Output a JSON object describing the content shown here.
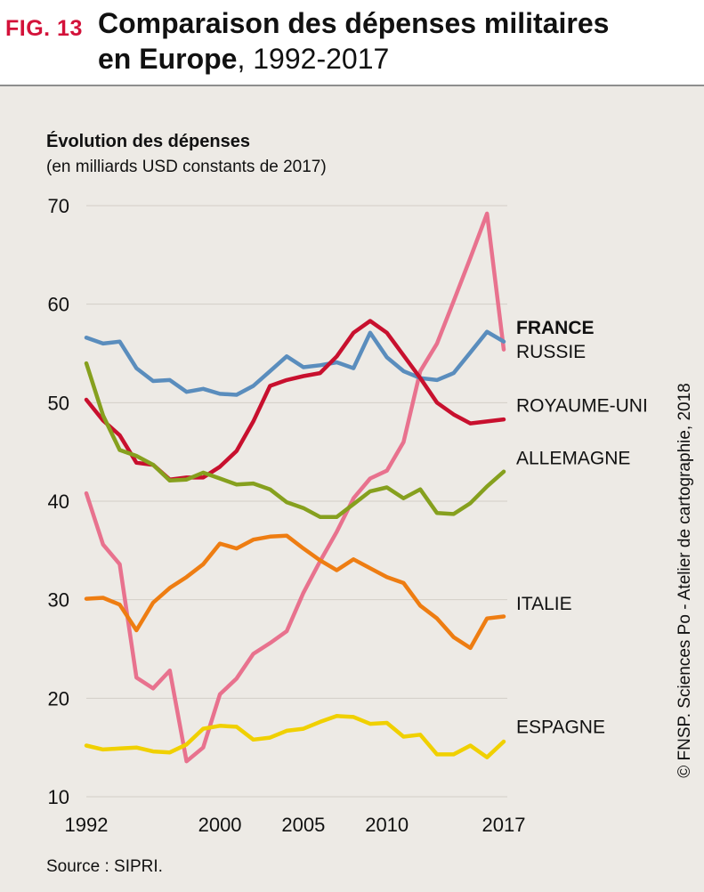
{
  "header": {
    "fig_label": "FIG. 13",
    "title_line1": "Comparaison des dépenses militaires",
    "title_line2_bold": "en Europe",
    "title_line2_rest": ", 1992-2017"
  },
  "footer": {
    "source": "Source : SIPRI.",
    "credit": "© FNSP. Sciences Po - Atelier de cartographie, 2018"
  },
  "chart_data": {
    "type": "line",
    "title": "Comparaison des dépenses militaires en Europe, 1992-2017",
    "ylabel_line1": "Évolution des dépenses",
    "ylabel_line2": "(en milliards USD constants de 2017)",
    "xlabel": "",
    "ylim": [
      10,
      70
    ],
    "xlim": [
      1992,
      2017
    ],
    "yticks": [
      10,
      20,
      30,
      40,
      50,
      60,
      70
    ],
    "xticks": [
      1992,
      2000,
      2005,
      2010,
      2017
    ],
    "grid": true,
    "x": [
      1992,
      1993,
      1994,
      1995,
      1996,
      1997,
      1998,
      1999,
      2000,
      2001,
      2002,
      2003,
      2004,
      2005,
      2006,
      2007,
      2008,
      2009,
      2010,
      2011,
      2012,
      2013,
      2014,
      2015,
      2016,
      2017
    ],
    "series": [
      {
        "name": "RUSSIE",
        "color": "#e8728e",
        "label_bold": false,
        "values": [
          40.8,
          35.6,
          33.6,
          22.1,
          21.0,
          22.8,
          13.6,
          15.0,
          20.4,
          22.0,
          24.5,
          25.6,
          26.8,
          30.7,
          33.9,
          36.9,
          40.3,
          42.3,
          43.1,
          46.0,
          53.2,
          56.0,
          60.3,
          64.7,
          69.2,
          55.4
        ]
      },
      {
        "name": "FRANCE",
        "color": "#5a8dbd",
        "label_bold": true,
        "values": [
          56.6,
          56.0,
          56.2,
          53.5,
          52.2,
          52.3,
          51.1,
          51.4,
          50.9,
          50.8,
          51.7,
          53.2,
          54.7,
          53.6,
          53.8,
          54.1,
          53.5,
          57.1,
          54.6,
          53.2,
          52.5,
          52.3,
          53.0,
          55.1,
          57.2,
          56.2
        ]
      },
      {
        "name": "ROYAUME-UNI",
        "color": "#c8102e",
        "label_bold": false,
        "values": [
          50.3,
          48.2,
          46.7,
          43.9,
          43.7,
          42.2,
          42.4,
          42.4,
          43.5,
          45.1,
          48.1,
          51.7,
          52.3,
          52.7,
          53.0,
          54.7,
          57.1,
          58.3,
          57.1,
          54.8,
          52.5,
          50.0,
          48.8,
          47.9,
          48.1,
          48.3
        ]
      },
      {
        "name": "ALLEMAGNE",
        "color": "#86a01e",
        "label_bold": false,
        "values": [
          54.0,
          48.7,
          45.2,
          44.6,
          43.7,
          42.1,
          42.2,
          42.9,
          42.3,
          41.7,
          41.8,
          41.2,
          39.9,
          39.3,
          38.4,
          38.4,
          39.7,
          41.0,
          41.4,
          40.3,
          41.2,
          38.8,
          38.7,
          39.8,
          41.5,
          43.0
        ]
      },
      {
        "name": "ITALIE",
        "color": "#ee7d12",
        "label_bold": false,
        "values": [
          30.1,
          30.2,
          29.5,
          26.9,
          29.7,
          31.2,
          32.3,
          33.6,
          35.7,
          35.2,
          36.1,
          36.4,
          36.5,
          35.2,
          34.0,
          33.0,
          34.1,
          33.2,
          32.3,
          31.7,
          29.4,
          28.1,
          26.2,
          25.1,
          28.1,
          28.3
        ]
      },
      {
        "name": "ESPAGNE",
        "color": "#f0d000",
        "label_bold": false,
        "values": [
          15.2,
          14.8,
          14.9,
          15.0,
          14.6,
          14.5,
          15.3,
          16.9,
          17.2,
          17.1,
          15.8,
          16.0,
          16.7,
          16.9,
          17.6,
          18.2,
          18.1,
          17.4,
          17.5,
          16.1,
          16.3,
          14.3,
          14.3,
          15.2,
          14.0,
          15.6
        ]
      }
    ],
    "series_label_values": {
      "FRANCE": 57.6,
      "RUSSIE": 55.2,
      "ROYAUME-UNI": 49.7,
      "ALLEMAGNE": 44.4,
      "ITALIE": 29.6,
      "ESPAGNE": 17.1
    }
  }
}
